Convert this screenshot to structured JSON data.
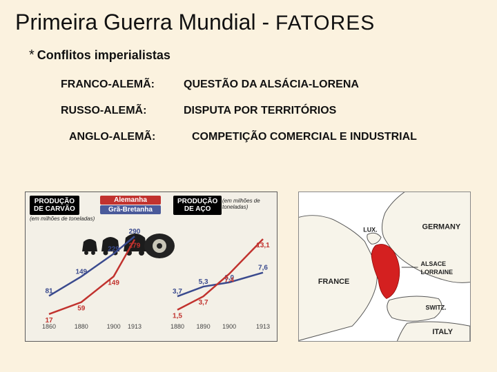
{
  "title": {
    "main": "Primeira Guerra Mundial - ",
    "suffix": "FATORES",
    "color": "#111111",
    "fontsize": 32
  },
  "subheading": {
    "asterisk": "*",
    "text": "Conflitos imperialistas",
    "fontsize": 18
  },
  "rivalries": [
    {
      "label": "FRANCO-ALEMÃ:",
      "desc": "QUESTÃO DA ALSÁCIA-LORENA"
    },
    {
      "label": "RUSSO-ALEMÃ:",
      "desc": "DISPUTA POR TERRITÓRIOS"
    },
    {
      "label": "ANGLO-ALEMÃ:",
      "desc": "COMPETIÇÃO COMERCIAL E INDUSTRIAL"
    }
  ],
  "charts": {
    "background_color": "#f3f0e7",
    "border_color": "#5a5a5a",
    "legend": {
      "de": "Alemanha",
      "gb": "Grã-Bretanha",
      "de_color": "#c1322e",
      "gb_color": "#4a5a9a"
    },
    "coal": {
      "banner": "PRODUÇÃO\nDE CARVÃO",
      "subtitle": "(em milhões de toneladas)",
      "type": "line",
      "years": [
        1860,
        1880,
        1900,
        1913
      ],
      "germany": [
        17,
        59,
        149,
        279
      ],
      "britain": [
        81,
        149,
        229,
        290
      ],
      "germany_labels": [
        "17",
        "59",
        "149",
        "279"
      ],
      "britain_labels": [
        "81",
        "149",
        "229",
        "290"
      ],
      "colors": {
        "germany": "#c1322e",
        "britain": "#3a4a8e"
      },
      "line_width": 2.5,
      "ylim": [
        0,
        300
      ],
      "xlim": [
        1860,
        1913
      ]
    },
    "steel": {
      "banner": "PRODUÇÃO\nDE AÇO",
      "subtitle": "(em milhões de toneladas)",
      "type": "line",
      "years": [
        1880,
        1890,
        1900,
        1913
      ],
      "germany": [
        1.5,
        3.7,
        7.4,
        13.1
      ],
      "britain": [
        3.7,
        5.3,
        6.0,
        7.6
      ],
      "germany_labels": [
        "1,5",
        "3,7",
        "7,4",
        "13,1"
      ],
      "britain_labels": [
        "3,7",
        "5,3",
        "6,0",
        "7,6"
      ],
      "colors": {
        "germany": "#c1322e",
        "britain": "#3a4a8e"
      },
      "line_width": 2.5,
      "ylim": [
        0,
        14
      ],
      "xlim": [
        1880,
        1913
      ]
    }
  },
  "map": {
    "type": "map",
    "labels": {
      "germany": "GERMANY",
      "france": "FRANCE",
      "italy": "ITALY",
      "switz": "SWITZ.",
      "lux": "LUX.",
      "region1": "ALSACE",
      "region2": "LORRAINE"
    },
    "colors": {
      "land": "#f7f4ea",
      "border": "#555555",
      "highlight": "#d42020",
      "water": "#ffffff"
    }
  },
  "page_bg": "#fbf2df"
}
